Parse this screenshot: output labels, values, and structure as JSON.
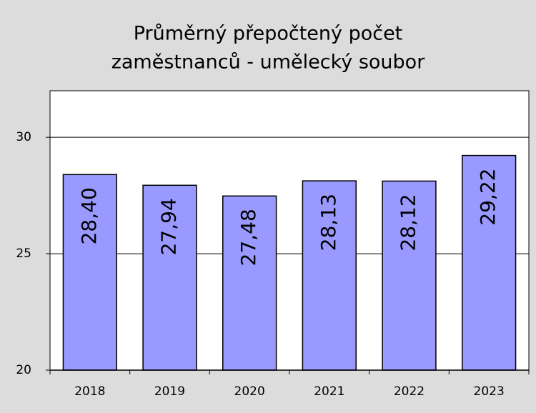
{
  "chart_data": {
    "type": "bar",
    "title": [
      "Průměrný přepočtený počet",
      "zaměstnanců - umělecký soubor"
    ],
    "categories": [
      "2018",
      "2019",
      "2020",
      "2021",
      "2022",
      "2023"
    ],
    "values": [
      28.4,
      27.94,
      27.48,
      28.13,
      28.12,
      29.22
    ],
    "value_labels": [
      "28,40",
      "27,94",
      "27,48",
      "28,13",
      "28,12",
      "29,22"
    ],
    "color": "#9999ff",
    "ylim": [
      20,
      32
    ],
    "yticks": [
      20,
      25,
      30
    ],
    "grid": true
  }
}
